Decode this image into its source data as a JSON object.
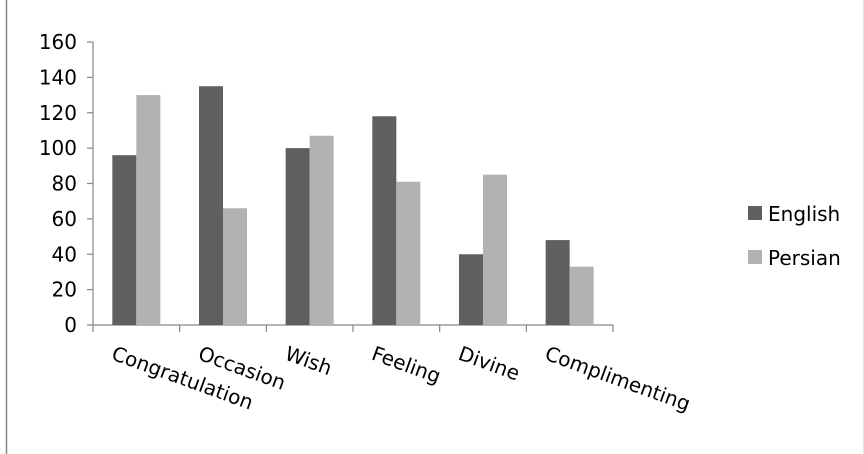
{
  "chart_data": {
    "type": "bar",
    "categories": [
      "Congratulation",
      "Occasion",
      "Wish",
      "Feeling",
      "Divine",
      "Complimenting"
    ],
    "series": [
      {
        "name": "English",
        "values": [
          96,
          135,
          100,
          118,
          40,
          48
        ],
        "color": "#5f5f5f"
      },
      {
        "name": "Persian",
        "values": [
          130,
          66,
          107,
          81,
          85,
          33
        ],
        "color": "#b2b2b2"
      }
    ],
    "title": "",
    "xlabel": "",
    "ylabel": "",
    "ylim": [
      0,
      160
    ],
    "yticks": [
      "0",
      "20",
      "40",
      "60",
      "80",
      "100",
      "120",
      "140",
      "160"
    ],
    "grid": false,
    "legend_position": "right"
  },
  "colors": {
    "axis": "#868686",
    "frame": "#868686",
    "background": "#ffffff"
  }
}
